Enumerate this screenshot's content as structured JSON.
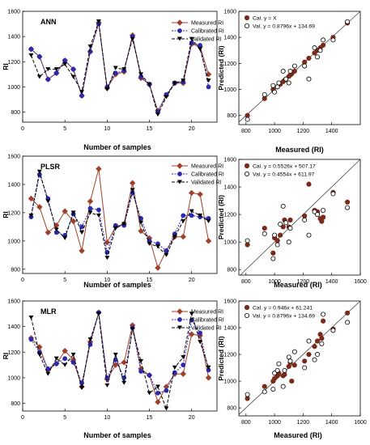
{
  "chart_data": [
    {
      "type": "line",
      "panel_label": "ANN",
      "xlabel": "Number of samples",
      "ylabel": "RI",
      "xlim": [
        0,
        23
      ],
      "ylim": [
        720,
        1600
      ],
      "x_ticks": [
        "0",
        "5",
        "10",
        "15",
        "20"
      ],
      "y_ticks": [
        "800",
        "1000",
        "1200",
        "1400",
        "1600"
      ],
      "x": [
        1,
        2,
        3,
        4,
        5,
        6,
        7,
        8,
        9,
        10,
        11,
        12,
        13,
        14,
        15,
        16,
        17,
        18,
        19,
        20,
        21,
        22
      ],
      "series": [
        {
          "name": "Measured RI",
          "color": "#a0402a",
          "marker": "diamond",
          "values": [
            1300,
            1240,
            1060,
            1110,
            1210,
            1140,
            930,
            1280,
            1510,
            990,
            1100,
            1120,
            1410,
            1070,
            1020,
            810,
            930,
            1030,
            1030,
            1340,
            1320,
            1100
          ]
        },
        {
          "name": "Calibrated RI",
          "color": "#2a2ab0",
          "marker": "circle",
          "values": [
            1300,
            1240,
            1060,
            1110,
            1210,
            1140,
            930,
            1280,
            1500,
            1000,
            1110,
            1130,
            1400,
            1080,
            1020,
            800,
            940,
            1030,
            1040,
            1350,
            1330,
            1000
          ]
        },
        {
          "name": "Validated  RI",
          "color": "#000000",
          "marker": "triangle-down",
          "values": [
            1250,
            1080,
            1140,
            1140,
            1180,
            1080,
            960,
            1320,
            1520,
            980,
            1150,
            1140,
            1380,
            1100,
            1020,
            780,
            920,
            1030,
            1050,
            1380,
            1300,
            1050
          ]
        }
      ]
    },
    {
      "type": "scatter",
      "xlabel": "Measured (RI)",
      "ylabel": "Predicted (RI)",
      "xlim": [
        750,
        1600
      ],
      "ylim": [
        730,
        1600
      ],
      "x_ticks": [
        "800",
        "1000",
        "1200",
        "1400"
      ],
      "y_ticks": [
        "800",
        "1000",
        "1200",
        "1400",
        "1600"
      ],
      "series": [
        {
          "name": "Cal. y = X",
          "marker": "filled",
          "points": [
            [
              810,
              800
            ],
            [
              930,
              930
            ],
            [
              990,
              1000
            ],
            [
              1020,
              1020
            ],
            [
              1040,
              1040
            ],
            [
              1060,
              1060
            ],
            [
              1070,
              1070
            ],
            [
              1100,
              1100
            ],
            [
              1110,
              1110
            ],
            [
              1120,
              1120
            ],
            [
              1140,
              1140
            ],
            [
              1210,
              1210
            ],
            [
              1240,
              1240
            ],
            [
              1280,
              1280
            ],
            [
              1300,
              1300
            ],
            [
              1320,
              1320
            ],
            [
              1340,
              1340
            ],
            [
              1410,
              1400
            ],
            [
              1510,
              1510
            ]
          ]
        },
        {
          "name": "Val.  y = 0.8796x + 134.69",
          "marker": "open",
          "points": [
            [
              810,
              770
            ],
            [
              930,
              960
            ],
            [
              990,
              1030
            ],
            [
              1000,
              980
            ],
            [
              1020,
              1020
            ],
            [
              1030,
              1050
            ],
            [
              1060,
              1140
            ],
            [
              1080,
              1080
            ],
            [
              1100,
              1050
            ],
            [
              1110,
              1140
            ],
            [
              1140,
              1180
            ],
            [
              1210,
              1180
            ],
            [
              1240,
              1080
            ],
            [
              1280,
              1320
            ],
            [
              1300,
              1250
            ],
            [
              1320,
              1300
            ],
            [
              1340,
              1380
            ],
            [
              1410,
              1380
            ],
            [
              1510,
              1520
            ]
          ]
        }
      ]
    },
    {
      "type": "line",
      "panel_label": "PLSR",
      "xlabel": "Number of samples",
      "ylabel": "RI",
      "xlim": [
        0,
        23
      ],
      "ylim": [
        770,
        1600
      ],
      "x_ticks": [
        "0",
        "5",
        "10",
        "15",
        "20"
      ],
      "y_ticks": [
        "800",
        "1000",
        "1200",
        "1400",
        "1600"
      ],
      "x": [
        1,
        2,
        3,
        4,
        5,
        6,
        7,
        8,
        9,
        10,
        11,
        12,
        13,
        14,
        15,
        16,
        17,
        18,
        19,
        20,
        21,
        22
      ],
      "series": [
        {
          "name": "Measured RI",
          "color": "#a0402a",
          "marker": "diamond",
          "values": [
            1300,
            1240,
            1060,
            1110,
            1210,
            1140,
            930,
            1280,
            1510,
            990,
            1100,
            1120,
            1410,
            1070,
            1020,
            810,
            930,
            1030,
            1030,
            1340,
            1330,
            1000
          ]
        },
        {
          "name": "Calibrated RI",
          "color": "#2a2ab0",
          "marker": "circle",
          "values": [
            1170,
            1470,
            1300,
            1060,
            1040,
            1190,
            1100,
            1230,
            1220,
            920,
            1110,
            1110,
            1340,
            1160,
            1000,
            980,
            930,
            1050,
            1180,
            1180,
            1170,
            1160
          ]
        },
        {
          "name": "Validated  RI",
          "color": "#000000",
          "marker": "triangle-down",
          "values": [
            1180,
            1490,
            1280,
            1080,
            1020,
            1200,
            1060,
            1200,
            1180,
            880,
            1090,
            1120,
            1360,
            1130,
            980,
            960,
            900,
            1030,
            1140,
            1210,
            1180,
            1140
          ]
        }
      ]
    },
    {
      "type": "scatter",
      "xlabel": "Measured (RI)",
      "ylabel": "Predicted (RI)",
      "xlim": [
        750,
        1600
      ],
      "ylim": [
        760,
        1600
      ],
      "x_ticks": [
        "800",
        "1000",
        "1200",
        "1400",
        "1600"
      ],
      "y_ticks": [
        "800",
        "1000",
        "1200",
        "1400",
        "1600"
      ],
      "series": [
        {
          "name": "Cal. y = 0.5526x + 507.17",
          "marker": "filled",
          "points": [
            [
              810,
              980
            ],
            [
              930,
              1100
            ],
            [
              990,
              920
            ],
            [
              1000,
              1030
            ],
            [
              1020,
              1010
            ],
            [
              1040,
              1050
            ],
            [
              1060,
              1110
            ],
            [
              1070,
              1160
            ],
            [
              1100,
              1110
            ],
            [
              1110,
              1160
            ],
            [
              1210,
              1190
            ],
            [
              1240,
              1420
            ],
            [
              1280,
              1230
            ],
            [
              1300,
              1220
            ],
            [
              1320,
              1170
            ],
            [
              1330,
              1150
            ],
            [
              1340,
              1180
            ],
            [
              1410,
              1360
            ],
            [
              1510,
              1290
            ]
          ]
        },
        {
          "name": "Val.  y = 0.4554x + 611.97",
          "marker": "open",
          "points": [
            [
              810,
              1010
            ],
            [
              930,
              1060
            ],
            [
              990,
              880
            ],
            [
              1000,
              1050
            ],
            [
              1020,
              980
            ],
            [
              1040,
              1130
            ],
            [
              1060,
              1260
            ],
            [
              1080,
              1140
            ],
            [
              1100,
              1000
            ],
            [
              1110,
              1100
            ],
            [
              1210,
              1160
            ],
            [
              1240,
              1050
            ],
            [
              1280,
              1220
            ],
            [
              1300,
              1200
            ],
            [
              1340,
              1230
            ],
            [
              1410,
              1350
            ],
            [
              1510,
              1250
            ]
          ]
        }
      ]
    },
    {
      "type": "line",
      "panel_label": "MLR",
      "xlabel": "Number of samples",
      "ylabel": "RI",
      "xlim": [
        0,
        23
      ],
      "ylim": [
        740,
        1600
      ],
      "x_ticks": [
        "0",
        "5",
        "10",
        "15",
        "20"
      ],
      "y_ticks": [
        "800",
        "1000",
        "1200",
        "1400",
        "1600"
      ],
      "x": [
        1,
        2,
        3,
        4,
        5,
        6,
        7,
        8,
        9,
        10,
        11,
        12,
        13,
        14,
        15,
        16,
        17,
        18,
        19,
        20,
        21,
        22
      ],
      "series": [
        {
          "name": "Measured RI",
          "color": "#a0402a",
          "marker": "diamond",
          "values": [
            1310,
            1240,
            1060,
            1110,
            1210,
            1140,
            930,
            1280,
            1510,
            990,
            1100,
            1120,
            1410,
            1070,
            1020,
            810,
            930,
            1030,
            1030,
            1340,
            1330,
            1000
          ]
        },
        {
          "name": "Calibrated RI",
          "color": "#2a2ab0",
          "marker": "circle",
          "values": [
            1300,
            1200,
            1070,
            1110,
            1150,
            1120,
            960,
            1260,
            1510,
            1000,
            1140,
            1000,
            1390,
            1050,
            1020,
            880,
            900,
            1040,
            1100,
            1450,
            1350,
            1060
          ]
        },
        {
          "name": "Validated  RI",
          "color": "#000000",
          "marker": "triangle-down",
          "values": [
            1470,
            1180,
            1030,
            1150,
            1100,
            1180,
            920,
            1300,
            1500,
            940,
            1180,
            960,
            1380,
            1130,
            880,
            930,
            760,
            1080,
            1160,
            1500,
            1280,
            1080
          ]
        }
      ]
    },
    {
      "type": "scatter",
      "xlabel": "Measured (RI)",
      "ylabel": "Predicted (RI)",
      "xlim": [
        750,
        1600
      ],
      "ylim": [
        740,
        1600
      ],
      "x_ticks": [
        "800",
        "1000",
        "1200",
        "1400",
        "1600"
      ],
      "y_ticks": [
        "800",
        "1000",
        "1200",
        "1400",
        "1600"
      ],
      "series": [
        {
          "name": "Cal.  y = 0.946x + 61.241",
          "marker": "filled",
          "points": [
            [
              810,
              870
            ],
            [
              930,
              960
            ],
            [
              990,
              1000
            ],
            [
              1000,
              1020
            ],
            [
              1020,
              1040
            ],
            [
              1030,
              1060
            ],
            [
              1060,
              1040
            ],
            [
              1070,
              1050
            ],
            [
              1100,
              1110
            ],
            [
              1110,
              1140
            ],
            [
              1120,
              1000
            ],
            [
              1140,
              1120
            ],
            [
              1210,
              1150
            ],
            [
              1240,
              1200
            ],
            [
              1280,
              1260
            ],
            [
              1300,
              1300
            ],
            [
              1320,
              1350
            ],
            [
              1330,
              1320
            ],
            [
              1340,
              1450
            ],
            [
              1410,
              1390
            ],
            [
              1510,
              1510
            ]
          ]
        },
        {
          "name": "Val.  y = 0.8796x + 134.69",
          "marker": "open",
          "points": [
            [
              810,
              900
            ],
            [
              930,
              920
            ],
            [
              990,
              940
            ],
            [
              1000,
              1060
            ],
            [
              1020,
              1080
            ],
            [
              1030,
              1130
            ],
            [
              1060,
              960
            ],
            [
              1070,
              1080
            ],
            [
              1100,
              1180
            ],
            [
              1110,
              1150
            ],
            [
              1140,
              1220
            ],
            [
              1210,
              1100
            ],
            [
              1240,
              1300
            ],
            [
              1280,
              1160
            ],
            [
              1300,
              1200
            ],
            [
              1330,
              1280
            ],
            [
              1340,
              1500
            ],
            [
              1410,
              1380
            ],
            [
              1510,
              1440
            ]
          ]
        }
      ]
    }
  ]
}
